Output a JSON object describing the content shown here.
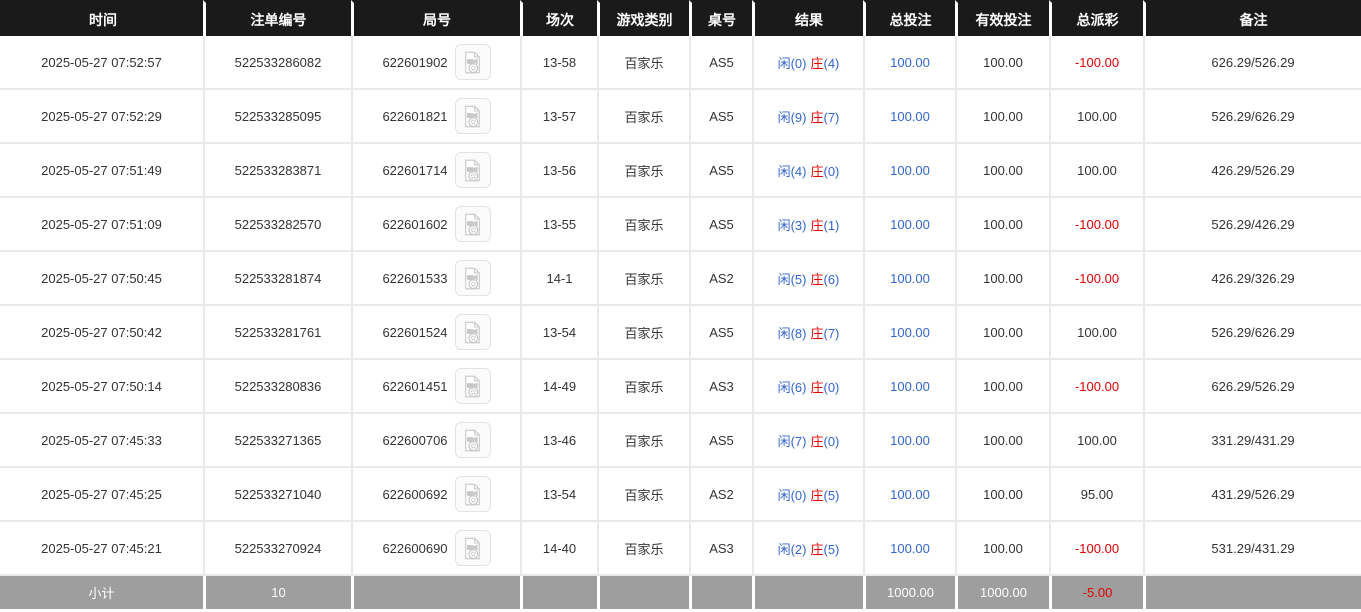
{
  "table": {
    "columns": [
      {
        "key": "time",
        "label": "时间"
      },
      {
        "key": "bet_id",
        "label": "注单编号"
      },
      {
        "key": "round_id",
        "label": "局号"
      },
      {
        "key": "session",
        "label": "场次"
      },
      {
        "key": "game_type",
        "label": "游戏类别"
      },
      {
        "key": "table_no",
        "label": "桌号"
      },
      {
        "key": "result",
        "label": "结果"
      },
      {
        "key": "total_bet",
        "label": "总投注"
      },
      {
        "key": "valid_bet",
        "label": "有效投注"
      },
      {
        "key": "total_payout",
        "label": "总派彩"
      },
      {
        "key": "remark",
        "label": "备注"
      }
    ],
    "rows": [
      {
        "time": "2025-05-27 07:52:57",
        "bet_id": "522533286082",
        "round_id": "622601902",
        "session": "13-58",
        "game_type": "百家乐",
        "table_no": "AS5",
        "result": {
          "player": "闲(0)",
          "banker_label": "庄",
          "banker_count": "(4)"
        },
        "total_bet": "100.00",
        "valid_bet": "100.00",
        "total_payout": "-100.00",
        "remark": "626.29/526.29"
      },
      {
        "time": "2025-05-27 07:52:29",
        "bet_id": "522533285095",
        "round_id": "622601821",
        "session": "13-57",
        "game_type": "百家乐",
        "table_no": "AS5",
        "result": {
          "player": "闲(9)",
          "banker_label": "庄",
          "banker_count": "(7)"
        },
        "total_bet": "100.00",
        "valid_bet": "100.00",
        "total_payout": "100.00",
        "remark": "526.29/626.29"
      },
      {
        "time": "2025-05-27 07:51:49",
        "bet_id": "522533283871",
        "round_id": "622601714",
        "session": "13-56",
        "game_type": "百家乐",
        "table_no": "AS5",
        "result": {
          "player": "闲(4)",
          "banker_label": "庄",
          "banker_count": "(0)"
        },
        "total_bet": "100.00",
        "valid_bet": "100.00",
        "total_payout": "100.00",
        "remark": "426.29/526.29"
      },
      {
        "time": "2025-05-27 07:51:09",
        "bet_id": "522533282570",
        "round_id": "622601602",
        "session": "13-55",
        "game_type": "百家乐",
        "table_no": "AS5",
        "result": {
          "player": "闲(3)",
          "banker_label": "庄",
          "banker_count": "(1)"
        },
        "total_bet": "100.00",
        "valid_bet": "100.00",
        "total_payout": "-100.00",
        "remark": "526.29/426.29"
      },
      {
        "time": "2025-05-27 07:50:45",
        "bet_id": "522533281874",
        "round_id": "622601533",
        "session": "14-1",
        "game_type": "百家乐",
        "table_no": "AS2",
        "result": {
          "player": "闲(5)",
          "banker_label": "庄",
          "banker_count": "(6)"
        },
        "total_bet": "100.00",
        "valid_bet": "100.00",
        "total_payout": "-100.00",
        "remark": "426.29/326.29"
      },
      {
        "time": "2025-05-27 07:50:42",
        "bet_id": "522533281761",
        "round_id": "622601524",
        "session": "13-54",
        "game_type": "百家乐",
        "table_no": "AS5",
        "result": {
          "player": "闲(8)",
          "banker_label": "庄",
          "banker_count": "(7)"
        },
        "total_bet": "100.00",
        "valid_bet": "100.00",
        "total_payout": "100.00",
        "remark": "526.29/626.29"
      },
      {
        "time": "2025-05-27 07:50:14",
        "bet_id": "522533280836",
        "round_id": "622601451",
        "session": "14-49",
        "game_type": "百家乐",
        "table_no": "AS3",
        "result": {
          "player": "闲(6)",
          "banker_label": "庄",
          "banker_count": "(0)"
        },
        "total_bet": "100.00",
        "valid_bet": "100.00",
        "total_payout": "-100.00",
        "remark": "626.29/526.29"
      },
      {
        "time": "2025-05-27 07:45:33",
        "bet_id": "522533271365",
        "round_id": "622600706",
        "session": "13-46",
        "game_type": "百家乐",
        "table_no": "AS5",
        "result": {
          "player": "闲(7)",
          "banker_label": "庄",
          "banker_count": "(0)"
        },
        "total_bet": "100.00",
        "valid_bet": "100.00",
        "total_payout": "100.00",
        "remark": "331.29/431.29"
      },
      {
        "time": "2025-05-27 07:45:25",
        "bet_id": "522533271040",
        "round_id": "622600692",
        "session": "13-54",
        "game_type": "百家乐",
        "table_no": "AS2",
        "result": {
          "player": "闲(0)",
          "banker_label": "庄",
          "banker_count": "(5)"
        },
        "total_bet": "100.00",
        "valid_bet": "100.00",
        "total_payout": "95.00",
        "remark": "431.29/526.29"
      },
      {
        "time": "2025-05-27 07:45:21",
        "bet_id": "522533270924",
        "round_id": "622600690",
        "session": "14-40",
        "game_type": "百家乐",
        "table_no": "AS3",
        "result": {
          "player": "闲(2)",
          "banker_label": "庄",
          "banker_count": "(5)"
        },
        "total_bet": "100.00",
        "valid_bet": "100.00",
        "total_payout": "-100.00",
        "remark": "531.29/431.29"
      }
    ],
    "footer": {
      "label": "小计",
      "bet_count": "10",
      "total_bet": "1000.00",
      "valid_bet": "1000.00",
      "total_payout": "-5.00"
    }
  },
  "icons": {
    "round_replay": "video-file-icon"
  },
  "colors": {
    "header_bg": "#1a1a1a",
    "accent_blue": "#3366cc",
    "negative_red": "#e00000",
    "footer_bg": "#9e9e9e",
    "row_border": "#e9e9e9"
  }
}
